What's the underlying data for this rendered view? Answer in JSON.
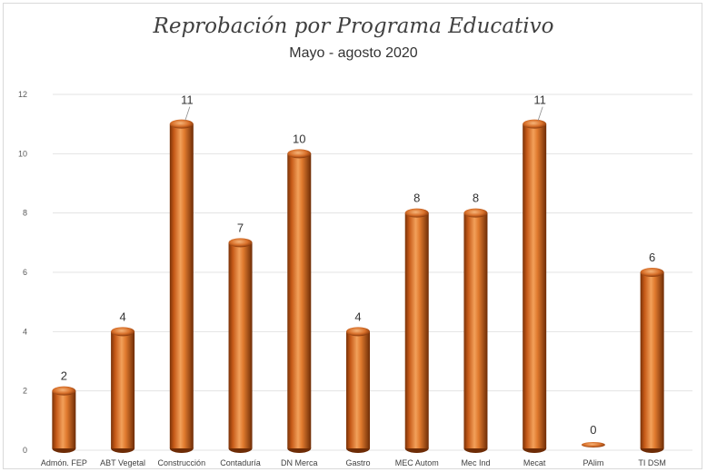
{
  "chart_data": {
    "type": "bar",
    "title": "Reprobación por Programa Educativo",
    "subtitle": "Mayo - agosto 2020",
    "categories": [
      "Admón. FEP",
      "ABT Vegetal",
      "Construcción",
      "Contaduría",
      "DN Merca",
      "Gastro",
      "MEC Autom",
      "Mec Ind",
      "Mecat",
      "PAlim",
      "TI DSM"
    ],
    "values": [
      2,
      4,
      11,
      7,
      10,
      4,
      8,
      8,
      11,
      0,
      6
    ],
    "ylim": [
      0,
      12
    ],
    "yticks": [
      0,
      2,
      4,
      6,
      8,
      10,
      12
    ],
    "xlabel": "",
    "ylabel": "",
    "grid": true,
    "legend": "none",
    "bar_color": "#e07a2e",
    "bar_shade": "#8a3a0c"
  }
}
